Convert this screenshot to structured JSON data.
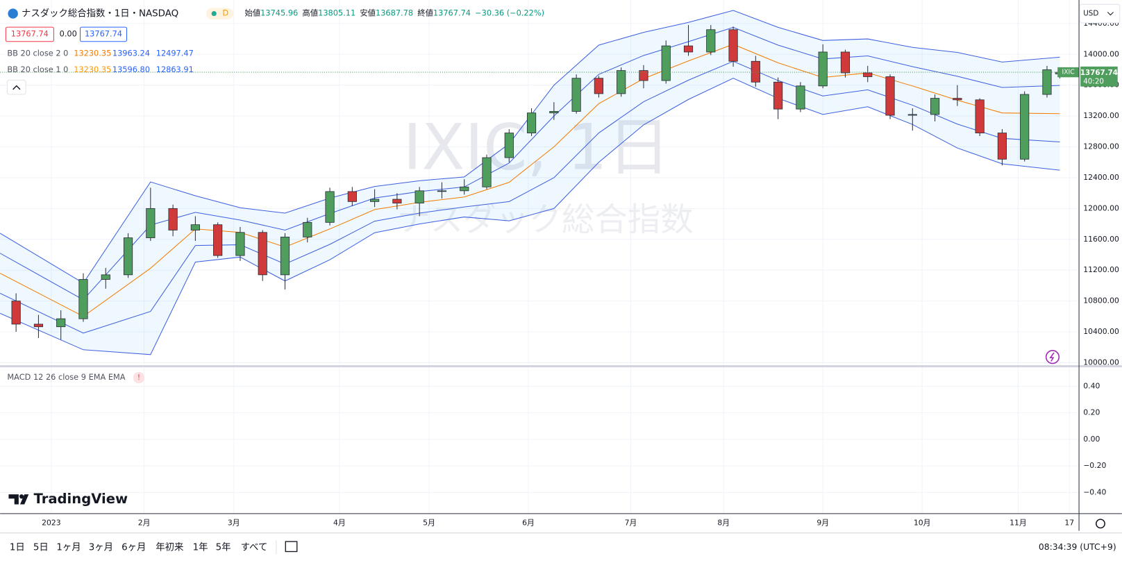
{
  "header": {
    "symbol_title": "ナスダック総合指数・1日・NASDAQ",
    "badge": "D",
    "ohlc": [
      {
        "label": "始値",
        "value": 13745.96
      },
      {
        "label": "高値",
        "value": 13805.11
      },
      {
        "label": "安値",
        "value": 13687.78
      },
      {
        "label": "終値",
        "value": 13767.74
      }
    ],
    "change": "−30.36 (−0.22%)"
  },
  "legend": {
    "price_boxes": [
      "13767.74",
      "0.00",
      "13767.74"
    ],
    "bb_rows": [
      {
        "label": "BB 20 close 2 0",
        "values": [
          "13230.35",
          "13963.24",
          "12497.47"
        ]
      },
      {
        "label": "BB 20 close 1 0",
        "values": [
          "13230.35",
          "13596.80",
          "12863.91"
        ]
      }
    ],
    "macd_label": "MACD 12 26 close 9 EMA EMA",
    "macd_alert": "!"
  },
  "axis": {
    "currency": "USD",
    "last_symbol": "IXIC",
    "last_price": "13767.74",
    "countdown": "40:20"
  },
  "watermark": {
    "line1": "IXIC, 1日",
    "line2": "ナスダック総合指数"
  },
  "logo": "TradingView",
  "toolbar": {
    "ranges": [
      "1日",
      "5日",
      "1ヶ月",
      "3ヶ月",
      "6ヶ月",
      "年初来",
      "1年",
      "5年",
      "すべて"
    ],
    "clock": "08:34:39 (UTC+9)"
  },
  "chart_data": [
    {
      "type": "candlestick",
      "up_color": "#4f9e5d",
      "down_color": "#d03a3a",
      "x": [
        "2022-12-23",
        "2022-12-30",
        "2023-01-06",
        "2023-01-13",
        "2023-01-20",
        "2023-01-27",
        "2023-02-03",
        "2023-02-10",
        "2023-02-17",
        "2023-02-24",
        "2023-03-03",
        "2023-03-10",
        "2023-03-17",
        "2023-03-24",
        "2023-03-31",
        "2023-04-07",
        "2023-04-14",
        "2023-04-21",
        "2023-04-28",
        "2023-05-05",
        "2023-05-12",
        "2023-05-19",
        "2023-05-26",
        "2023-06-02",
        "2023-06-09",
        "2023-06-16",
        "2023-06-23",
        "2023-06-30",
        "2023-07-07",
        "2023-07-14",
        "2023-07-21",
        "2023-07-28",
        "2023-08-04",
        "2023-08-11",
        "2023-08-18",
        "2023-08-25",
        "2023-09-01",
        "2023-09-08",
        "2023-09-15",
        "2023-09-22",
        "2023-09-29",
        "2023-10-06",
        "2023-10-13",
        "2023-10-20",
        "2023-10-27",
        "2023-11-03",
        "2023-11-10",
        "2023-11-14"
      ],
      "open": [
        10800,
        10500,
        10466,
        10570,
        11080,
        11140,
        11620,
        12000,
        11720,
        11790,
        11390,
        11690,
        11140,
        11630,
        11820,
        12220,
        12090,
        12120,
        12070,
        12230,
        12230,
        12280,
        12660,
        12980,
        13240,
        13260,
        13690,
        13490,
        13790,
        13660,
        14110,
        14030,
        14320,
        13910,
        13640,
        13290,
        13590,
        14030,
        13760,
        13710,
        13210,
        13220,
        13430,
        13410,
        12980,
        12640,
        13480,
        13745.96
      ],
      "high": [
        10900,
        10620,
        10680,
        11160,
        11230,
        11680,
        12270,
        12050,
        11900,
        11820,
        11760,
        11720,
        11680,
        11880,
        12270,
        12280,
        12250,
        12200,
        12280,
        12340,
        12380,
        12700,
        13030,
        13300,
        13380,
        13740,
        13720,
        13830,
        13860,
        14180,
        14380,
        14380,
        14360,
        13980,
        13700,
        13640,
        14130,
        14060,
        13850,
        13740,
        13300,
        13480,
        13600,
        13430,
        13030,
        13520,
        13850,
        13805.11
      ],
      "low": [
        10400,
        10320,
        10300,
        10530,
        10960,
        11100,
        11580,
        11640,
        11580,
        11360,
        11320,
        11060,
        10950,
        11560,
        11780,
        12030,
        12020,
        11990,
        11900,
        12130,
        12180,
        12250,
        12600,
        12940,
        13150,
        13230,
        13440,
        13450,
        13560,
        13620,
        13980,
        13990,
        13840,
        13580,
        13160,
        13250,
        13560,
        13700,
        13640,
        13160,
        13010,
        13130,
        13330,
        12940,
        12560,
        12610,
        13440,
        13687.78
      ],
      "close": [
        10500,
        10466,
        10570,
        11080,
        11140,
        11620,
        12000,
        11720,
        11790,
        11390,
        11690,
        11140,
        11630,
        11820,
        12220,
        12090,
        12120,
        12070,
        12230,
        12230,
        12280,
        12660,
        12980,
        13240,
        13260,
        13690,
        13490,
        13790,
        13660,
        14110,
        14030,
        14320,
        13910,
        13640,
        13290,
        13590,
        14030,
        13760,
        13710,
        13210,
        13220,
        13430,
        13410,
        12980,
        12640,
        13480,
        13800,
        13767.74
      ],
      "bb": {
        "x": [
          "2022-12-18",
          "2023-01-13",
          "2023-02-03",
          "2023-02-17",
          "2023-03-03",
          "2023-03-17",
          "2023-03-31",
          "2023-04-14",
          "2023-04-28",
          "2023-05-12",
          "2023-05-26",
          "2023-06-09",
          "2023-06-23",
          "2023-07-07",
          "2023-07-21",
          "2023-08-04",
          "2023-08-18",
          "2023-09-01",
          "2023-09-15",
          "2023-09-29",
          "2023-10-13",
          "2023-10-27",
          "2023-11-14"
        ],
        "upper_outer": [
          11680,
          11032,
          12345,
          12165,
          12010,
          11940,
          12135,
          12286,
          12360,
          12410,
          12840,
          13600,
          14120,
          14285,
          14415,
          14570,
          14350,
          14180,
          14200,
          14090,
          14025,
          13900,
          13963.24
        ],
        "upper_inner": [
          11420,
          10816,
          11785,
          11950,
          11850,
          11720,
          11935,
          12136,
          12220,
          12280,
          12590,
          13200,
          13740,
          13985,
          14165,
          14350,
          14120,
          13940,
          13980,
          13840,
          13715,
          13570,
          13596.8
        ],
        "basis": [
          11160,
          10600,
          11225,
          11735,
          11690,
          11500,
          11735,
          11986,
          12080,
          12150,
          12340,
          12800,
          13360,
          13685,
          13915,
          14130,
          13890,
          13700,
          13760,
          13590,
          13405,
          13240,
          13230.35
        ],
        "lower_inner": [
          10900,
          10384,
          10665,
          11520,
          11530,
          11280,
          11535,
          11836,
          11940,
          12020,
          12090,
          12400,
          12980,
          13385,
          13665,
          13910,
          13660,
          13460,
          13540,
          13340,
          13095,
          12910,
          12863.91
        ],
        "lower_outer": [
          10640,
          10168,
          10105,
          11305,
          11370,
          11060,
          11335,
          11686,
          11800,
          11890,
          11840,
          12000,
          12600,
          13085,
          13415,
          13690,
          13430,
          13220,
          13320,
          13090,
          12785,
          12580,
          12497.47
        ],
        "band_color": "#3d5fe0",
        "basis_color": "#f57c00",
        "fill_color": "#2196f3"
      },
      "xlim": [
        "2022-12-18",
        "2023-11-20"
      ],
      "xticks": [
        {
          "value": "2023-01-03",
          "label": "2023"
        },
        {
          "value": "2023-02-01",
          "label": "2月"
        },
        {
          "value": "2023-03-01",
          "label": "3月"
        },
        {
          "value": "2023-04-03",
          "label": "4月"
        },
        {
          "value": "2023-05-01",
          "label": "5月"
        },
        {
          "value": "2023-06-01",
          "label": "6月"
        },
        {
          "value": "2023-07-03",
          "label": "7月"
        },
        {
          "value": "2023-08-01",
          "label": "8月"
        },
        {
          "value": "2023-09-01",
          "label": "9月"
        },
        {
          "value": "2023-10-02",
          "label": "10月"
        },
        {
          "value": "2023-11-01",
          "label": "11月"
        },
        {
          "value": "2023-11-17",
          "label": "17"
        }
      ],
      "ylim": [
        9972,
        14705
      ],
      "yticks": [
        {
          "value": 10000,
          "label": "10000.00"
        },
        {
          "value": 10400,
          "label": "10400.00"
        },
        {
          "value": 10800,
          "label": "10800.00"
        },
        {
          "value": 11200,
          "label": "11200.00"
        },
        {
          "value": 11600,
          "label": "11600.00"
        },
        {
          "value": 12000,
          "label": "12000.00"
        },
        {
          "value": 12400,
          "label": "12400.00"
        },
        {
          "value": 12800,
          "label": "12800.00"
        },
        {
          "value": 13200,
          "label": "13200.00"
        },
        {
          "value": 13600,
          "label": "13600.00"
        },
        {
          "value": 14000,
          "label": "14000.00"
        },
        {
          "value": 14400,
          "label": "14400.00"
        }
      ],
      "grid": true
    },
    {
      "type": "macd",
      "ylim": [
        -0.56,
        0.54
      ],
      "yticks": [
        {
          "value": 0.4,
          "label": "0.40"
        },
        {
          "value": 0.2,
          "label": "0.20"
        },
        {
          "value": 0,
          "label": "0.00"
        },
        {
          "value": -0.2,
          "label": "−0.20"
        },
        {
          "value": -0.4,
          "label": "−0.40"
        }
      ],
      "grid": true
    }
  ]
}
